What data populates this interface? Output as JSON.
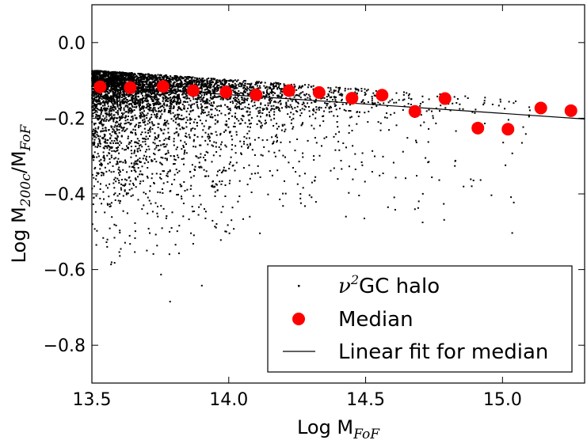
{
  "chart_data": {
    "type": "scatter",
    "xlabel": "Log M",
    "xlabel_sub": "FoF",
    "ylabel_prefix": "Log M",
    "ylabel_sub1": "200c",
    "ylabel_mid": "/M",
    "ylabel_sub2": "FoF",
    "xlim": [
      13.5,
      15.3
    ],
    "ylim": [
      -0.9,
      0.1
    ],
    "x_ticks": [
      13.5,
      14.0,
      14.5,
      15.0
    ],
    "x_tick_labels": [
      "13.5",
      "14.0",
      "14.5",
      "15.0"
    ],
    "y_ticks": [
      0.0,
      -0.2,
      -0.4,
      -0.6,
      -0.8
    ],
    "y_tick_labels": [
      "0.0",
      "−0.2",
      "−0.4",
      "−0.6",
      "−0.8"
    ],
    "grid": false,
    "legend_position": "lower-right",
    "series": [
      {
        "name_symbol": "ν",
        "name_exp": "2",
        "name_rest": "GC halo",
        "kind": "scatter-small",
        "color": "#000000",
        "n_points": 5000
      },
      {
        "name": "Median",
        "kind": "scatter-large",
        "color": "#ff0000",
        "x": [
          13.53,
          13.64,
          13.76,
          13.87,
          13.99,
          14.1,
          14.22,
          14.33,
          14.45,
          14.56,
          14.68,
          14.79,
          14.91,
          15.02,
          15.14,
          15.25
        ],
        "y": [
          -0.117,
          -0.119,
          -0.116,
          -0.127,
          -0.131,
          -0.138,
          -0.127,
          -0.132,
          -0.147,
          -0.139,
          -0.182,
          -0.148,
          -0.226,
          -0.229,
          -0.173,
          -0.18
        ]
      },
      {
        "name": "Linear fit for median",
        "kind": "line",
        "color": "#000000",
        "x": [
          13.5,
          15.3
        ],
        "y": [
          -0.113,
          -0.202
        ]
      }
    ]
  }
}
